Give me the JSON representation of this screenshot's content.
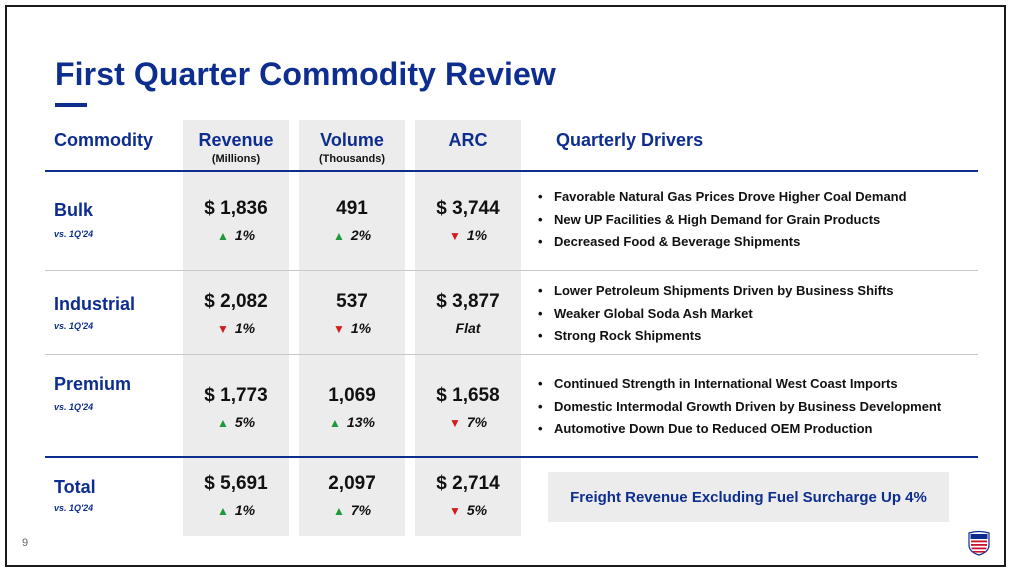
{
  "slide": {
    "title": "First Quarter Commodity Review",
    "page_number": "9"
  },
  "headers": {
    "commodity": "Commodity",
    "revenue": "Revenue",
    "revenue_unit": "(Millions)",
    "volume": "Volume",
    "volume_unit": "(Thousands)",
    "arc": "ARC",
    "drivers": "Quarterly Drivers"
  },
  "rows": [
    {
      "name": "Bulk",
      "compare": "vs. 1Q'24",
      "revenue": "$ 1,836",
      "revenue_change": "1%",
      "revenue_dir": "up",
      "volume": "491",
      "volume_change": "2%",
      "volume_dir": "up",
      "arc": "$ 3,744",
      "arc_change": "1%",
      "arc_dir": "down",
      "drivers": [
        "Favorable Natural Gas Prices Drove Higher Coal Demand",
        "New UP Facilities & High Demand for Grain Products",
        "Decreased Food & Beverage Shipments"
      ]
    },
    {
      "name": "Industrial",
      "compare": "vs. 1Q'24",
      "revenue": "$ 2,082",
      "revenue_change": "1%",
      "revenue_dir": "down",
      "volume": "537",
      "volume_change": "1%",
      "volume_dir": "down",
      "arc": "$ 3,877",
      "arc_change": "Flat",
      "arc_dir": "flat",
      "drivers": [
        "Lower Petroleum Shipments Driven by Business Shifts",
        "Weaker Global Soda Ash Market",
        "Strong Rock Shipments"
      ]
    },
    {
      "name": "Premium",
      "compare": "vs. 1Q'24",
      "revenue": "$ 1,773",
      "revenue_change": "5%",
      "revenue_dir": "up",
      "volume": "1,069",
      "volume_change": "13%",
      "volume_dir": "up",
      "arc": "$ 1,658",
      "arc_change": "7%",
      "arc_dir": "down",
      "drivers": [
        "Continued Strength in International West Coast Imports",
        "Domestic Intermodal Growth Driven by Business Development",
        "Automotive Down Due to Reduced OEM Production"
      ]
    },
    {
      "name": "Total",
      "compare": "vs. 1Q'24",
      "revenue": "$ 5,691",
      "revenue_change": "1%",
      "revenue_dir": "up",
      "volume": "2,097",
      "volume_change": "7%",
      "volume_dir": "up",
      "arc": "$ 2,714",
      "arc_change": "5%",
      "arc_dir": "down",
      "drivers": []
    }
  ],
  "callout": "Freight Revenue Excluding Fuel Surcharge Up 4%",
  "colors": {
    "brand_blue": "#0d2d8f",
    "up_green": "#1e9a3a",
    "down_red": "#d21c1c",
    "panel_gray": "#ececec"
  },
  "icons": {
    "up": "triangle-up-icon",
    "down": "triangle-down-icon",
    "logo": "union-pacific-shield-logo"
  }
}
